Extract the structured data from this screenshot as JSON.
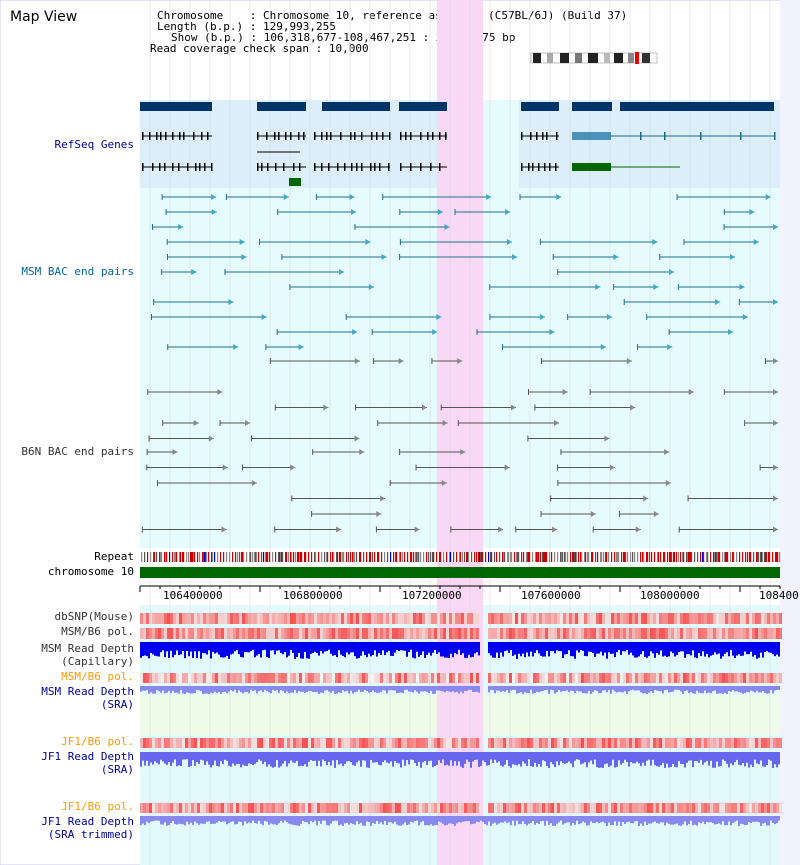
{
  "page": {
    "title": "Map View",
    "info": {
      "chromosome_key": "Chromosome",
      "chromosome_val": "Chromosome 10, reference assembly (C57BL/6J) (Build 37)",
      "length_key": "Length (b.p.)",
      "length_val": "129,993,255",
      "show_key": "Show (b.p.)",
      "show_val": "106,318,677-108,467,251 : 2,148,575 bp",
      "span_key": "Read coverage check span",
      "span_val": "10,000"
    }
  },
  "tracks": {
    "refseq": "RefSeq Genes",
    "msm_bac": "MSM BAC end pairs",
    "b6n_bac": "B6N BAC end pairs",
    "repeat": "Repeat",
    "chromosome": "chromosome 10",
    "dbsnp": "dbSNP(Mouse)",
    "msm_b6_pol": "MSM/B6 pol.",
    "msm_depth_cap_1": "MSM Read Depth",
    "msm_depth_cap_2": "(Capillary)",
    "msm_b6_pol_sra": "MSM/B6 pol.",
    "msm_depth_sra_1": "MSM Read Depth",
    "msm_depth_sra_2": "(SRA)",
    "jf1_pol_1": "JF1/B6 pol.",
    "jf1_depth_1": "JF1 Read Depth",
    "jf1_depth_sra": "(SRA)",
    "jf1_pol_2": "JF1/B6 pol.",
    "jf1_depth_2": "JF1 Read Depth",
    "jf1_depth_trim": "(SRA trimmed)"
  },
  "axis": {
    "ticks": [
      "106400000",
      "106800000",
      "107200000",
      "107600000",
      "108000000",
      "108400"
    ]
  },
  "colors": {
    "refseq_blue": "#003366",
    "refseq_label": "#000099",
    "msm_label": "#006699",
    "orange_label": "#ff9900",
    "highlight": "#f8d8f4",
    "track_bg": "#dcf7fb",
    "chromosome_green": "#006600",
    "depth_blue": "#0000ee"
  }
}
